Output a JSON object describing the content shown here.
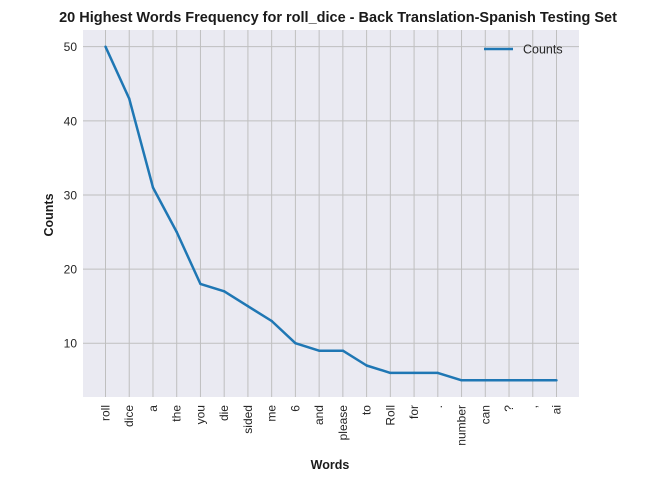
{
  "chart_data": {
    "type": "line",
    "title": "20 Highest Words Frequency for roll_dice - Back Translation-Spanish Testing Set",
    "xlabel": "Words",
    "ylabel": "Counts",
    "categories": [
      "roll",
      "dice",
      "a",
      "the",
      "you",
      "die",
      "sided",
      "me",
      "6",
      "and",
      "please",
      "to",
      "Roll",
      "for",
      ".",
      "number",
      "can",
      "?",
      ",",
      "ai"
    ],
    "series": [
      {
        "name": "Counts",
        "values": [
          50,
          43,
          31,
          25,
          18,
          17,
          15,
          13,
          10,
          9,
          9,
          7,
          6,
          6,
          6,
          5,
          5,
          5,
          5,
          5
        ]
      }
    ],
    "ylim": [
      2.75,
      52.25
    ],
    "yticks": [
      10,
      20,
      30,
      40,
      50
    ],
    "grid": true,
    "legend_position": "top-right",
    "colors": {
      "line": "#1f77b4",
      "plot_bg": "#eaeaf2",
      "grid": "#bfbfbf"
    }
  }
}
